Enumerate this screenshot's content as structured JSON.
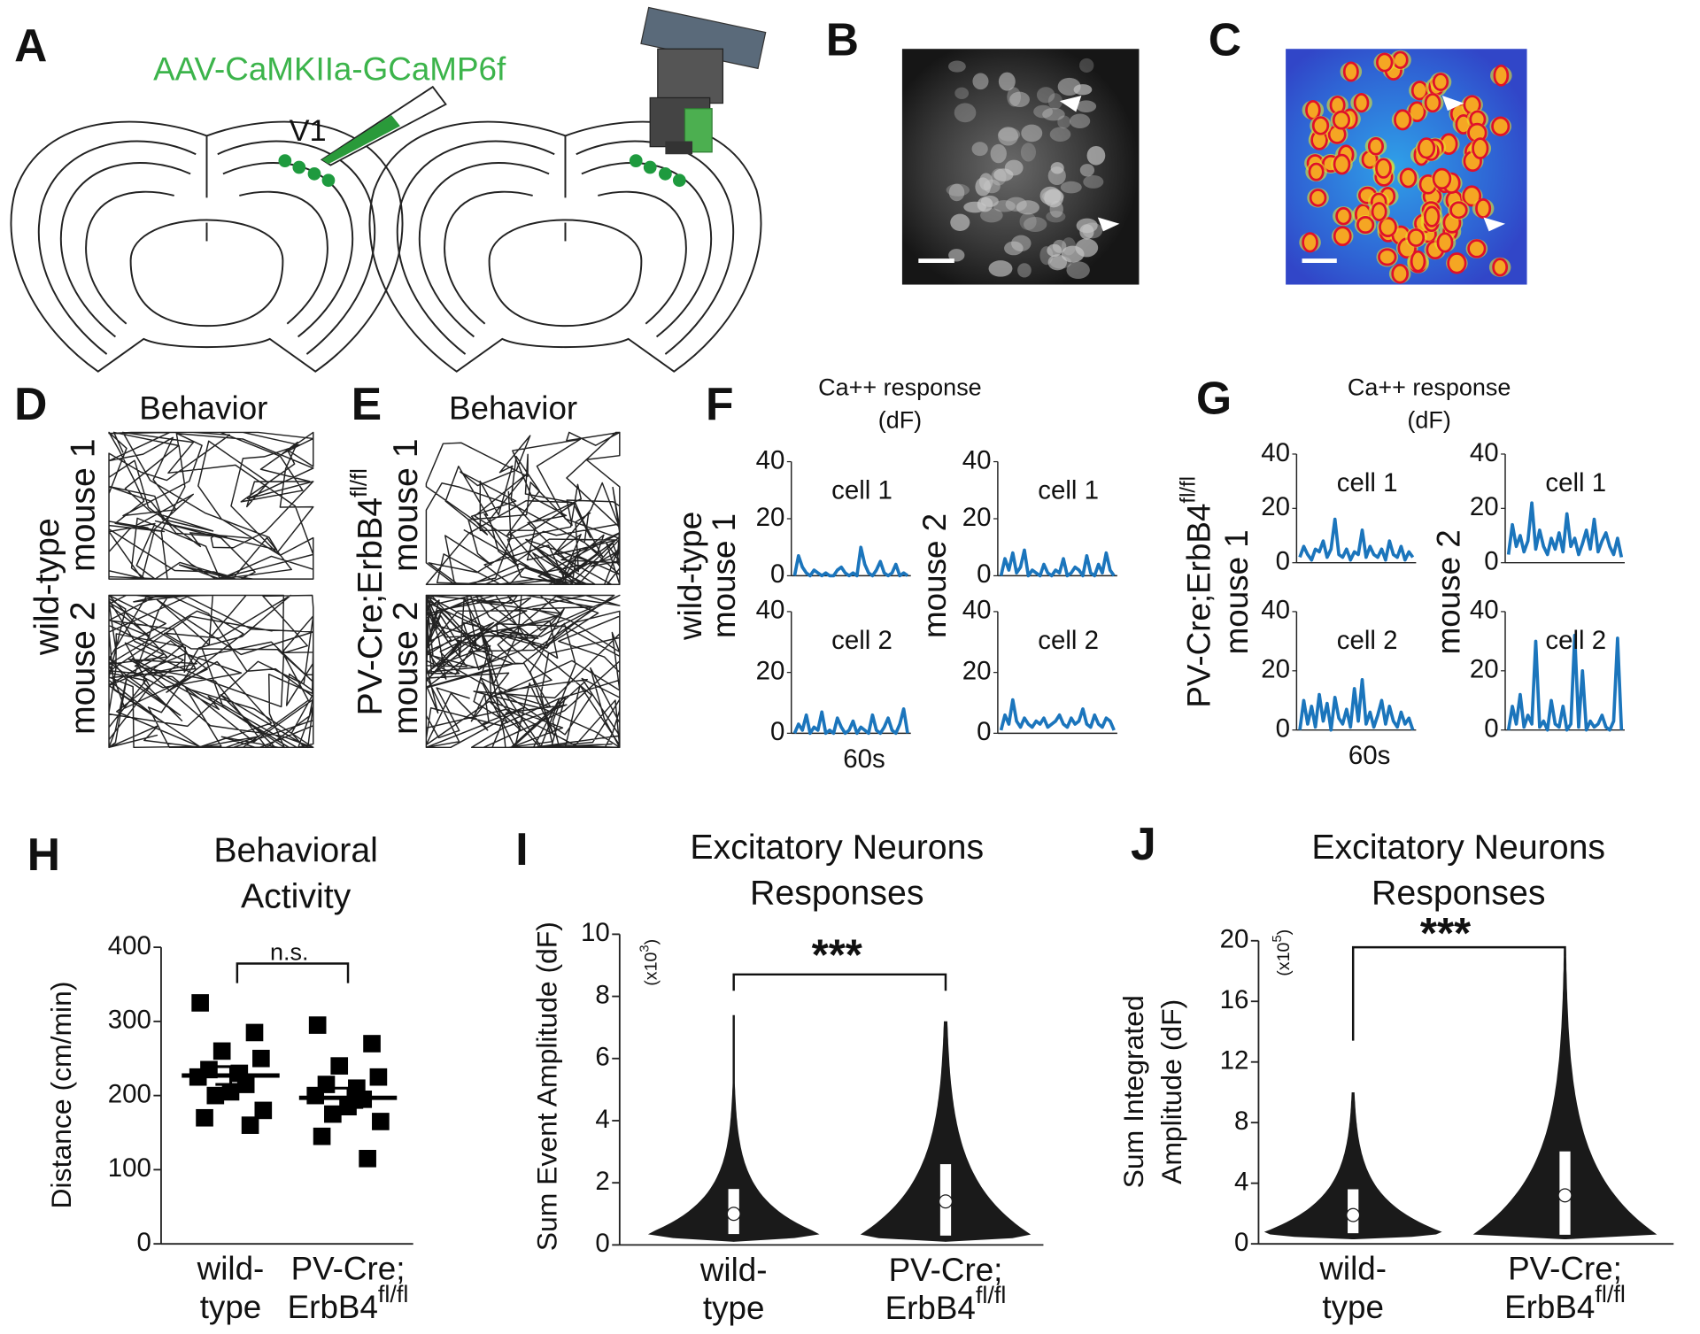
{
  "figure": {
    "panel_labels": [
      "A",
      "B",
      "C",
      "D",
      "E",
      "F",
      "G",
      "H",
      "I",
      "J"
    ],
    "A": {
      "construct": "AAV-CaMKIIa-GCaMP6f",
      "region": "V1"
    },
    "D": {
      "title": "Behavior",
      "genotype": "wild-type",
      "mice": [
        "mouse 1",
        "mouse 2"
      ]
    },
    "E": {
      "title": "Behavior",
      "genotype": {
        "text": "PV-Cre;ErbB4",
        "sup": "fl/fl"
      },
      "mice": [
        "mouse 1",
        "mouse 2"
      ]
    },
    "F": {
      "title": [
        "Ca++ response",
        "(dF)"
      ],
      "genotype": "wild-type",
      "time_scale": "60s",
      "ylim": [
        0,
        40
      ],
      "yticks": [
        0,
        20,
        40
      ],
      "color": "#1b75bc",
      "mice": [
        {
          "name": "mouse 1",
          "cells": [
            {
              "name": "cell 1",
              "values": [
                0,
                7,
                3,
                1,
                0,
                2,
                1,
                0,
                1,
                0,
                0,
                2,
                3,
                1,
                0,
                1,
                0,
                10,
                4,
                1,
                0,
                2,
                5,
                1,
                0,
                1,
                4,
                0,
                1,
                0
              ]
            },
            {
              "name": "cell 2",
              "values": [
                0,
                3,
                1,
                6,
                0,
                2,
                1,
                7,
                0,
                1,
                0,
                5,
                2,
                0,
                1,
                4,
                0,
                2,
                1,
                0,
                6,
                1,
                0,
                2,
                5,
                1,
                0,
                3,
                8,
                0
              ]
            }
          ]
        },
        {
          "name": "mouse 2",
          "cells": [
            {
              "name": "cell 1",
              "values": [
                0,
                6,
                2,
                8,
                1,
                3,
                9,
                0,
                2,
                1,
                0,
                4,
                1,
                0,
                2,
                1,
                6,
                0,
                1,
                3,
                2,
                0,
                7,
                1,
                0,
                4,
                1,
                8,
                2,
                0
              ]
            },
            {
              "name": "cell 2",
              "values": [
                1,
                6,
                3,
                11,
                4,
                2,
                5,
                3,
                2,
                4,
                3,
                5,
                2,
                3,
                4,
                6,
                3,
                2,
                5,
                3,
                4,
                8,
                3,
                2,
                6,
                3,
                2,
                5,
                4,
                1
              ]
            }
          ]
        }
      ]
    },
    "G": {
      "title": [
        "Ca++ response",
        "(dF)"
      ],
      "genotype": {
        "text": "PV-Cre;ErbB4",
        "sup": "fl/fl"
      },
      "time_scale": "60s",
      "ylim": [
        0,
        40
      ],
      "yticks": [
        0,
        20,
        40
      ],
      "color": "#1b75bc",
      "mice": [
        {
          "name": "mouse 1",
          "cells": [
            {
              "name": "cell 1",
              "values": [
                2,
                6,
                3,
                1,
                5,
                4,
                8,
                2,
                5,
                16,
                3,
                2,
                5,
                1,
                4,
                3,
                12,
                2,
                6,
                3,
                2,
                5,
                1,
                8,
                3,
                2,
                6,
                1,
                4,
                2
              ]
            },
            {
              "name": "cell 2",
              "values": [
                0,
                10,
                2,
                8,
                1,
                12,
                3,
                9,
                0,
                11,
                4,
                2,
                7,
                1,
                14,
                3,
                17,
                2,
                6,
                1,
                5,
                10,
                2,
                8,
                3,
                1,
                6,
                2,
                4,
                0
              ]
            }
          ]
        },
        {
          "name": "mouse 2",
          "cells": [
            {
              "name": "cell 1",
              "values": [
                3,
                14,
                6,
                10,
                4,
                8,
                22,
                5,
                12,
                6,
                3,
                9,
                5,
                11,
                4,
                18,
                6,
                9,
                3,
                7,
                12,
                5,
                16,
                4,
                8,
                11,
                6,
                3,
                9,
                2
              ]
            },
            {
              "name": "cell 2",
              "values": [
                0,
                8,
                2,
                12,
                1,
                5,
                2,
                30,
                1,
                3,
                0,
                10,
                2,
                1,
                8,
                0,
                2,
                32,
                1,
                20,
                0,
                3,
                1,
                2,
                5,
                1,
                0,
                3,
                31,
                0
              ]
            }
          ]
        }
      ]
    }
  },
  "chart_data": [
    {
      "type": "dot",
      "title": [
        "Behavioral",
        "Activity"
      ],
      "ylabel": [
        "Distance (cm/min)"
      ],
      "categories": [
        {
          "lines": [
            "wild-",
            "type"
          ]
        },
        {
          "lines": [
            "PV-Cre;",
            "ErbB4"
          ],
          "sup": "fl/fl"
        }
      ],
      "ylim": [
        0,
        400
      ],
      "yticks": [
        0,
        100,
        200,
        300,
        400
      ],
      "significance": "n.s.",
      "color": "#000000",
      "groups": [
        {
          "values": [
            325,
            285,
            260,
            250,
            235,
            230,
            225,
            215,
            205,
            200,
            180,
            170,
            160
          ],
          "mean": 227,
          "sem": 12
        },
        {
          "values": [
            295,
            270,
            240,
            225,
            215,
            210,
            200,
            195,
            185,
            175,
            165,
            145,
            115
          ],
          "mean": 197,
          "sem": 13
        }
      ]
    },
    {
      "type": "violin",
      "title": [
        "Excitatory Neurons",
        "Responses"
      ],
      "ylabel": [
        "Sum Event Amplitude (dF)"
      ],
      "scale_label": {
        "base": "(x10",
        "exp": "3",
        "close": ")"
      },
      "categories": [
        {
          "lines": [
            "wild-",
            "type"
          ]
        },
        {
          "lines": [
            "PV-Cre;",
            "ErbB4"
          ],
          "sup": "fl/fl"
        }
      ],
      "ylim": [
        0,
        10
      ],
      "yticks": [
        0,
        2,
        4,
        6,
        8,
        10
      ],
      "significance": "***",
      "color": "#1a1a1a",
      "groups": [
        {
          "min": 0.1,
          "q1": 0.35,
          "median": 1.0,
          "q3": 1.8,
          "max": 7.4
        },
        {
          "min": 0.1,
          "q1": 0.3,
          "median": 1.4,
          "q3": 2.6,
          "max": 7.2
        }
      ]
    },
    {
      "type": "violin",
      "title": [
        "Excitatory Neurons",
        "Responses"
      ],
      "ylabel": [
        "Sum Integrated",
        "Amplitude (dF)"
      ],
      "scale_label": {
        "base": "(x10",
        "exp": "5",
        "close": ")"
      },
      "categories": [
        {
          "lines": [
            "wild-",
            "type"
          ]
        },
        {
          "lines": [
            "PV-Cre;",
            "ErbB4"
          ],
          "sup": "fl/fl"
        }
      ],
      "ylim": [
        0,
        20
      ],
      "yticks": [
        0,
        4,
        8,
        12,
        16,
        20
      ],
      "significance": "***",
      "color": "#1a1a1a",
      "groups": [
        {
          "min": 0.3,
          "q1": 0.7,
          "median": 1.9,
          "q3": 3.6,
          "max": 10
        },
        {
          "min": 0.3,
          "q1": 0.6,
          "median": 3.2,
          "q3": 6.1,
          "max": 19.4
        }
      ]
    }
  ]
}
